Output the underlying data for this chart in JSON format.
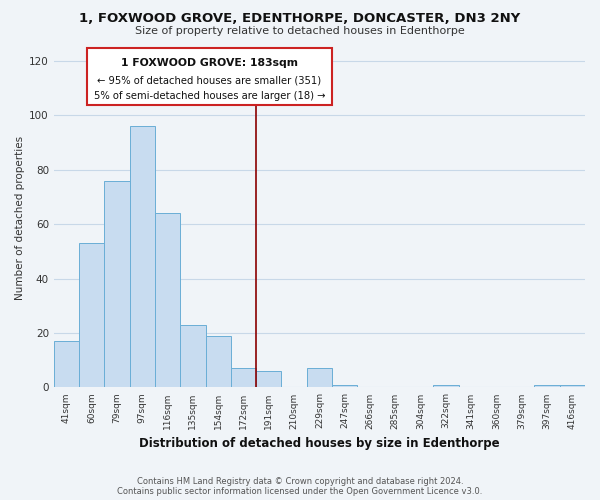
{
  "title1": "1, FOXWOOD GROVE, EDENTHORPE, DONCASTER, DN3 2NY",
  "title2": "Size of property relative to detached houses in Edenthorpe",
  "xlabel": "Distribution of detached houses by size in Edenthorpe",
  "ylabel": "Number of detached properties",
  "categories": [
    "41sqm",
    "60sqm",
    "79sqm",
    "97sqm",
    "116sqm",
    "135sqm",
    "154sqm",
    "172sqm",
    "191sqm",
    "210sqm",
    "229sqm",
    "247sqm",
    "266sqm",
    "285sqm",
    "304sqm",
    "322sqm",
    "341sqm",
    "360sqm",
    "379sqm",
    "397sqm",
    "416sqm"
  ],
  "values": [
    17,
    53,
    76,
    96,
    64,
    23,
    19,
    7,
    6,
    0,
    7,
    1,
    0,
    0,
    0,
    1,
    0,
    0,
    0,
    1,
    1
  ],
  "bar_color": "#c8dcf0",
  "bar_edge_color": "#6aaed6",
  "highlight_line_color": "#8b0000",
  "ylim": [
    0,
    125
  ],
  "yticks": [
    0,
    20,
    40,
    60,
    80,
    100,
    120
  ],
  "annotation_line1": "1 FOXWOOD GROVE: 183sqm",
  "annotation_line2": "← 95% of detached houses are smaller (351)",
  "annotation_line3": "5% of semi-detached houses are larger (18) →",
  "footer1": "Contains HM Land Registry data © Crown copyright and database right 2024.",
  "footer2": "Contains public sector information licensed under the Open Government Licence v3.0.",
  "bg_color": "#f0f4f8",
  "grid_color": "#c8d8e8"
}
